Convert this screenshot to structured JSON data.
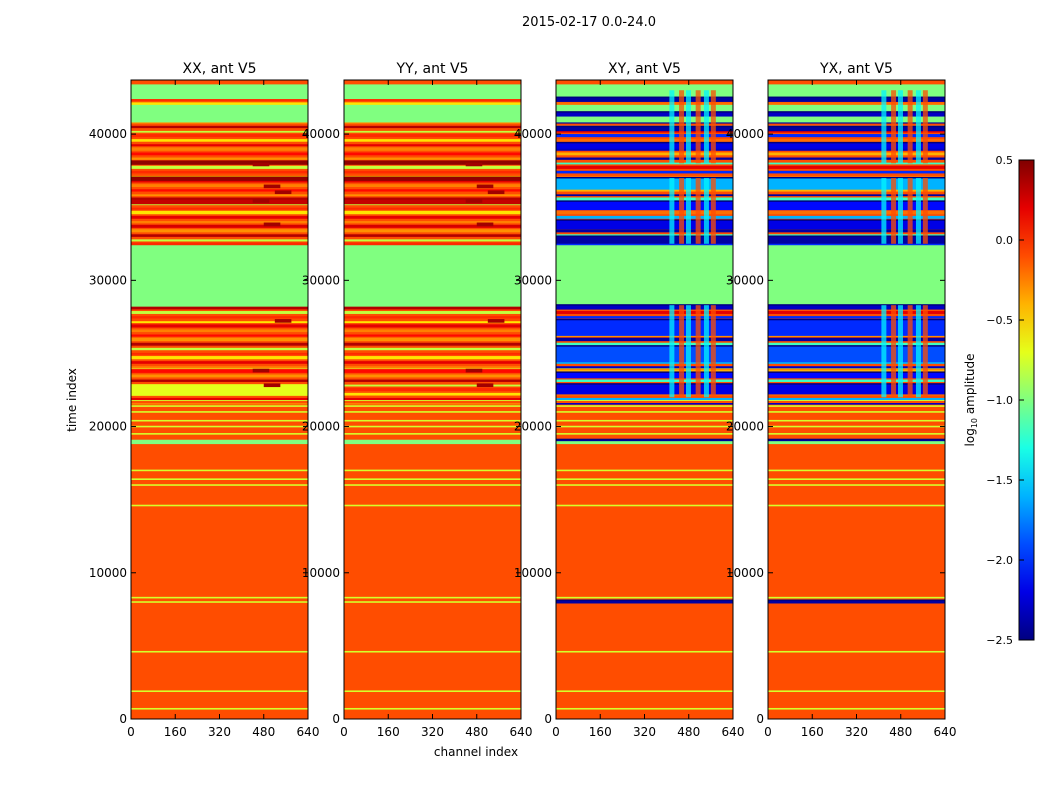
{
  "chart_data": {
    "type": "heatmap",
    "title": "2015-02-17 0.0-24.0",
    "xlabel": "channel index",
    "ylabel": "time index",
    "xlim": [
      0,
      640
    ],
    "ylim": [
      0,
      43700
    ],
    "x_ticks": [
      0,
      160,
      320,
      480,
      640
    ],
    "y_ticks": [
      0,
      10000,
      20000,
      30000,
      40000
    ],
    "panels": [
      {
        "title": "XX, ant V5",
        "kind": "parallel"
      },
      {
        "title": "YY, ant V5",
        "kind": "parallel"
      },
      {
        "title": "XY, ant V5",
        "kind": "cross"
      },
      {
        "title": "YX, ant V5",
        "kind": "cross"
      }
    ],
    "colorbar": {
      "label": "log10 amplitude",
      "label_main": "log",
      "label_sub": "10",
      "label_rest": " amplitude",
      "vmin": -2.5,
      "vmax": 0.5,
      "ticks": [
        0.5,
        0.0,
        -0.5,
        -1.0,
        -1.5,
        -2.0,
        -2.5
      ],
      "tick_labels": [
        "0.5",
        "0.0",
        "−0.5",
        "−1.0",
        "−1.5",
        "−2.0",
        "−2.5"
      ],
      "colormap": "jet"
    },
    "band_layers": {
      "background_parallel": -0.1,
      "background_cross": -0.1,
      "green_blocks": [
        {
          "y": [
            28200,
            32400
          ],
          "value": -1.0
        },
        {
          "y": [
            40800,
            42000
          ],
          "value": -1.0
        },
        {
          "y": [
            42400,
            43400
          ],
          "value": -1.0
        },
        {
          "y": [
            18800,
            19100
          ],
          "value": -1.0
        }
      ],
      "thin_yellow_lines": [
        700,
        1900,
        4600,
        8000,
        8300,
        14600,
        16000,
        16400,
        17000,
        19500,
        20000,
        20400,
        21000,
        21400,
        21800,
        24000,
        26000,
        27800,
        30000
      ],
      "yellow_band_xx": {
        "y": [
          22100,
          22900
        ],
        "value": -0.7
      },
      "cross_blue_bands": [
        {
          "y": [
            22200,
            22900
          ],
          "value": -2.2
        },
        {
          "y": [
            23300,
            23700
          ],
          "value": -2.1
        },
        {
          "y": [
            24400,
            25500
          ],
          "value": -1.9
        },
        {
          "y": [
            26200,
            27300
          ],
          "value": -2.0
        },
        {
          "y": [
            28000,
            28300
          ],
          "value": -2.3
        },
        {
          "y": [
            32500,
            33000
          ],
          "value": -2.4
        },
        {
          "y": [
            33500,
            34100
          ],
          "value": -2.2
        },
        {
          "y": [
            34800,
            35400
          ],
          "value": -2.1
        },
        {
          "y": [
            36200,
            37000
          ],
          "value": -1.6
        },
        {
          "y": [
            39000,
            39400
          ],
          "value": -2.2
        },
        {
          "y": [
            40200,
            40500
          ],
          "value": -2.4
        },
        {
          "y": [
            41200,
            41500
          ],
          "value": -2.3
        },
        {
          "y": [
            42200,
            42500
          ],
          "value": -2.4
        },
        {
          "y": [
            7900,
            8100
          ],
          "value": -2.4
        },
        {
          "y": [
            19000,
            19100
          ],
          "value": -2.4
        }
      ],
      "dark_red_bands_parallel": [
        {
          "y": [
            36800,
            37100
          ],
          "value": 0.45
        },
        {
          "y": [
            37900,
            38200
          ],
          "value": 0.45
        },
        {
          "y": [
            35200,
            35500
          ],
          "value": 0.3
        },
        {
          "y": [
            33600,
            33800
          ],
          "value": 0.25
        }
      ]
    }
  }
}
